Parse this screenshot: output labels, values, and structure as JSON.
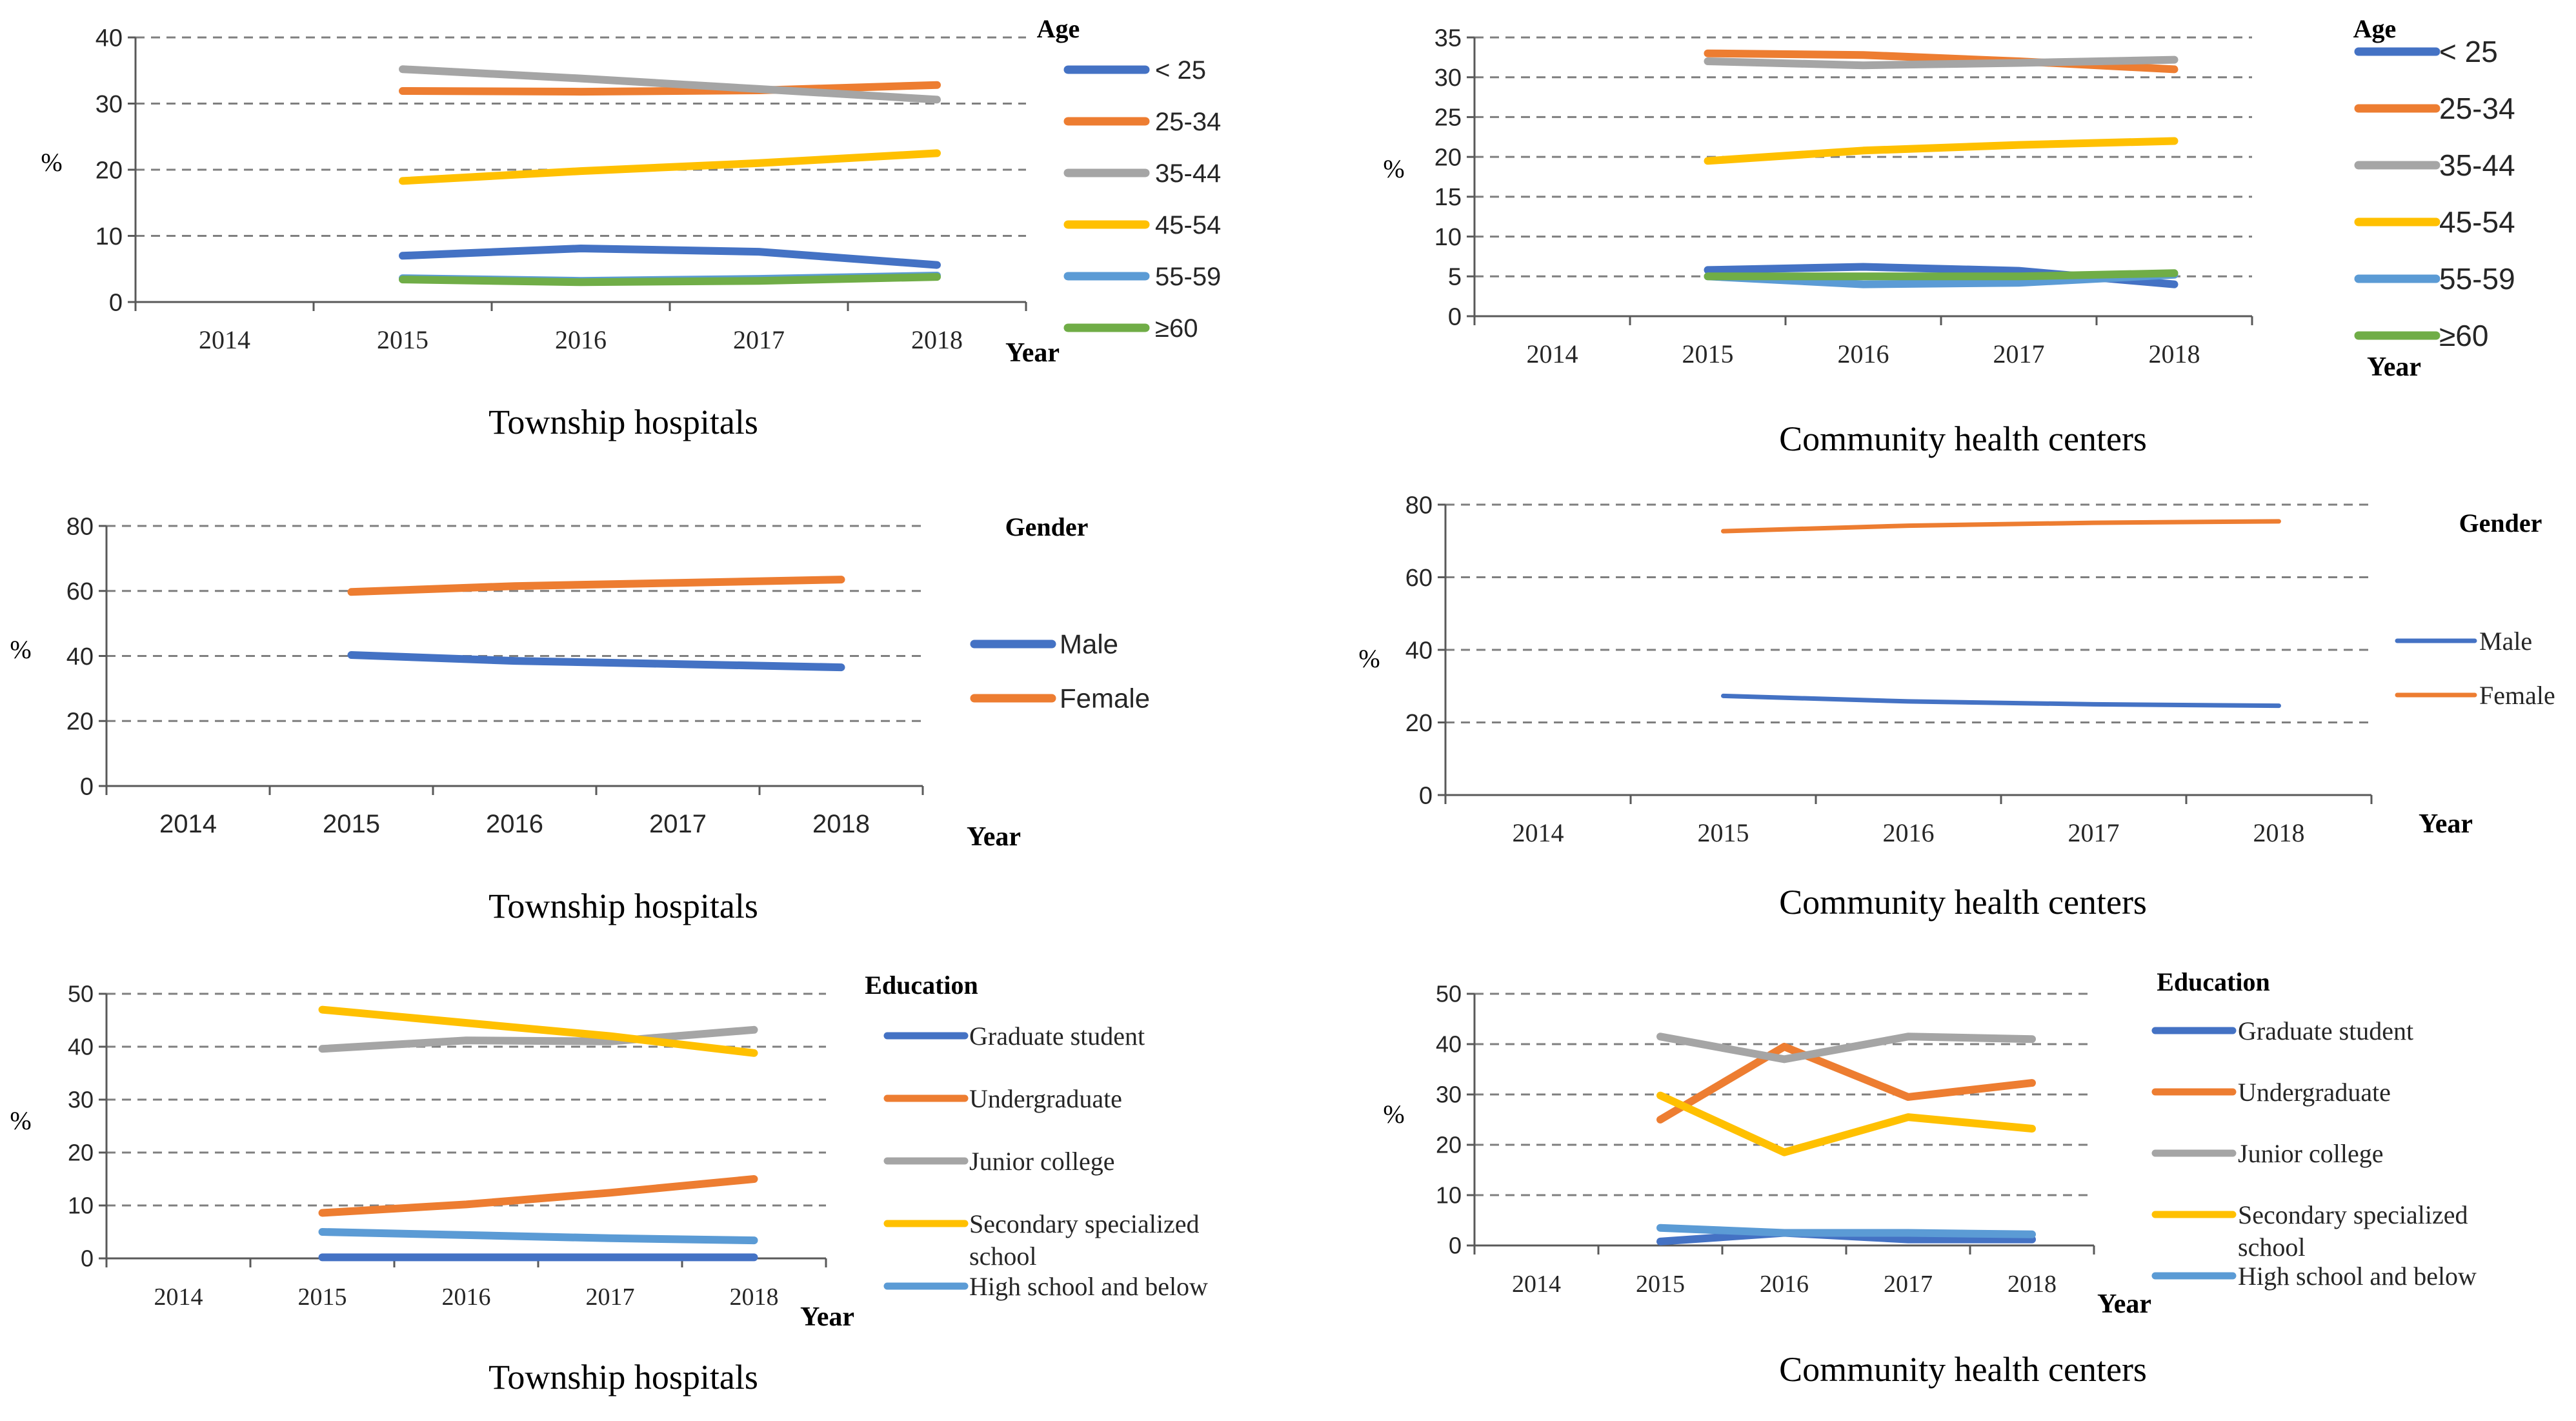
{
  "chart_data": [
    {
      "type": "line",
      "id": "township-age",
      "title": "Township hospitals",
      "xlabel": "Year",
      "ylabel": "%",
      "categories": [
        "2014",
        "2015",
        "2016",
        "2017",
        "2018"
      ],
      "ylim": [
        0,
        40
      ],
      "yticks": [
        0,
        10,
        20,
        30,
        40
      ],
      "grid": true,
      "legend_title": "Age",
      "legend_position": "right",
      "series": [
        {
          "name": "< 25",
          "color": "#4472C4",
          "values": [
            null,
            7.0,
            8.1,
            7.6,
            5.6
          ]
        },
        {
          "name": "25-34",
          "color": "#ED7D31",
          "values": [
            null,
            31.9,
            31.8,
            32.0,
            32.8
          ]
        },
        {
          "name": "35-44",
          "color": "#A5A5A5",
          "values": [
            null,
            35.2,
            33.8,
            32.2,
            30.6
          ]
        },
        {
          "name": "45-54",
          "color": "#FFC000",
          "values": [
            null,
            18.3,
            19.8,
            21.0,
            22.5
          ]
        },
        {
          "name": "55-59",
          "color": "#5B9BD5",
          "values": [
            null,
            3.6,
            3.2,
            3.5,
            4.0
          ]
        },
        {
          "name": "≥60",
          "color": "#70AD47",
          "values": [
            null,
            3.4,
            3.0,
            3.2,
            3.8
          ]
        }
      ]
    },
    {
      "type": "line",
      "id": "community-age",
      "title": "Community health centers",
      "xlabel": "Year",
      "ylabel": "%",
      "categories": [
        "2014",
        "2015",
        "2016",
        "2017",
        "2018"
      ],
      "ylim": [
        0,
        35
      ],
      "yticks": [
        0,
        5,
        10,
        15,
        20,
        25,
        30,
        35
      ],
      "grid": true,
      "legend_title": "Age",
      "legend_position": "right",
      "series": [
        {
          "name": "< 25",
          "color": "#4472C4",
          "values": [
            null,
            5.8,
            6.2,
            5.7,
            4.0
          ]
        },
        {
          "name": "25-34",
          "color": "#ED7D31",
          "values": [
            null,
            33.0,
            32.8,
            32.0,
            31.0
          ]
        },
        {
          "name": "35-44",
          "color": "#A5A5A5",
          "values": [
            null,
            32.0,
            31.5,
            31.8,
            32.2
          ]
        },
        {
          "name": "45-54",
          "color": "#FFC000",
          "values": [
            null,
            19.5,
            20.8,
            21.5,
            22.0
          ]
        },
        {
          "name": "55-59",
          "color": "#5B9BD5",
          "values": [
            null,
            5.0,
            4.0,
            4.2,
            5.2
          ]
        },
        {
          "name": "≥60",
          "color": "#70AD47",
          "values": [
            null,
            5.0,
            5.0,
            5.0,
            5.4
          ]
        }
      ]
    },
    {
      "type": "line",
      "id": "township-gender",
      "title": "Township hospitals",
      "xlabel": "Year",
      "ylabel": "%",
      "categories": [
        "2014",
        "2015",
        "2016",
        "2017",
        "2018"
      ],
      "ylim": [
        0,
        80
      ],
      "yticks": [
        0,
        20,
        40,
        60,
        80
      ],
      "grid": true,
      "legend_title": "Gender",
      "legend_position": "right",
      "series": [
        {
          "name": "Male",
          "color": "#4472C4",
          "values": [
            null,
            40.3,
            38.5,
            37.5,
            36.5
          ]
        },
        {
          "name": "Female",
          "color": "#ED7D31",
          "values": [
            null,
            59.7,
            61.5,
            62.5,
            63.5
          ]
        }
      ]
    },
    {
      "type": "line",
      "id": "community-gender",
      "title": "Community health centers",
      "xlabel": "Year",
      "ylabel": "%",
      "categories": [
        "2014",
        "2015",
        "2016",
        "2017",
        "2018"
      ],
      "ylim": [
        0,
        80
      ],
      "yticks": [
        0,
        20,
        40,
        60,
        80
      ],
      "grid": true,
      "legend_title": "Gender",
      "legend_position": "right",
      "series": [
        {
          "name": "Male",
          "color": "#4472C4",
          "values": [
            null,
            27.3,
            25.8,
            25.0,
            24.6
          ]
        },
        {
          "name": "Female",
          "color": "#ED7D31",
          "values": [
            null,
            72.7,
            74.2,
            75.0,
            75.4
          ]
        }
      ]
    },
    {
      "type": "line",
      "id": "township-education",
      "title": "Township hospitals",
      "xlabel": "Year",
      "ylabel": "%",
      "categories": [
        "2014",
        "2015",
        "2016",
        "2017",
        "2018"
      ],
      "ylim": [
        0,
        50
      ],
      "yticks": [
        0,
        10,
        20,
        30,
        40,
        50
      ],
      "grid": true,
      "legend_title": "Education",
      "legend_position": "right",
      "series": [
        {
          "name": "Graduate student",
          "color": "#4472C4",
          "values": [
            null,
            0.2,
            0.2,
            0.2,
            0.2
          ]
        },
        {
          "name": "Undergraduate",
          "color": "#ED7D31",
          "values": [
            null,
            8.6,
            10.2,
            12.4,
            15.0
          ]
        },
        {
          "name": "Junior college",
          "color": "#A5A5A5",
          "values": [
            null,
            39.6,
            41.2,
            41.0,
            43.2
          ]
        },
        {
          "name": "Secondary specialized school",
          "color": "#FFC000",
          "values": [
            null,
            47.0,
            44.5,
            42.0,
            38.8
          ]
        },
        {
          "name": "High school and below",
          "color": "#5B9BD5",
          "values": [
            null,
            5.0,
            4.4,
            3.8,
            3.4
          ]
        }
      ]
    },
    {
      "type": "line",
      "id": "community-education",
      "title": "Community health centers",
      "xlabel": "Year",
      "ylabel": "%",
      "categories": [
        "2014",
        "2015",
        "2016",
        "2017",
        "2018"
      ],
      "ylim": [
        0,
        50
      ],
      "yticks": [
        0,
        10,
        20,
        30,
        40,
        50
      ],
      "grid": true,
      "legend_title": "Education",
      "legend_position": "right",
      "series": [
        {
          "name": "Graduate student",
          "color": "#4472C4",
          "values": [
            null,
            0.8,
            2.5,
            1.2,
            1.2
          ]
        },
        {
          "name": "Undergraduate",
          "color": "#ED7D31",
          "values": [
            null,
            25.0,
            39.5,
            29.5,
            32.3
          ]
        },
        {
          "name": "Junior college",
          "color": "#A5A5A5",
          "values": [
            null,
            41.5,
            37.0,
            41.5,
            41.0
          ]
        },
        {
          "name": "Secondary specialized school",
          "color": "#FFC000",
          "values": [
            null,
            29.8,
            18.5,
            25.5,
            23.2
          ]
        },
        {
          "name": "High school and below",
          "color": "#5B9BD5",
          "values": [
            null,
            3.5,
            2.5,
            2.5,
            2.2
          ]
        }
      ]
    }
  ]
}
